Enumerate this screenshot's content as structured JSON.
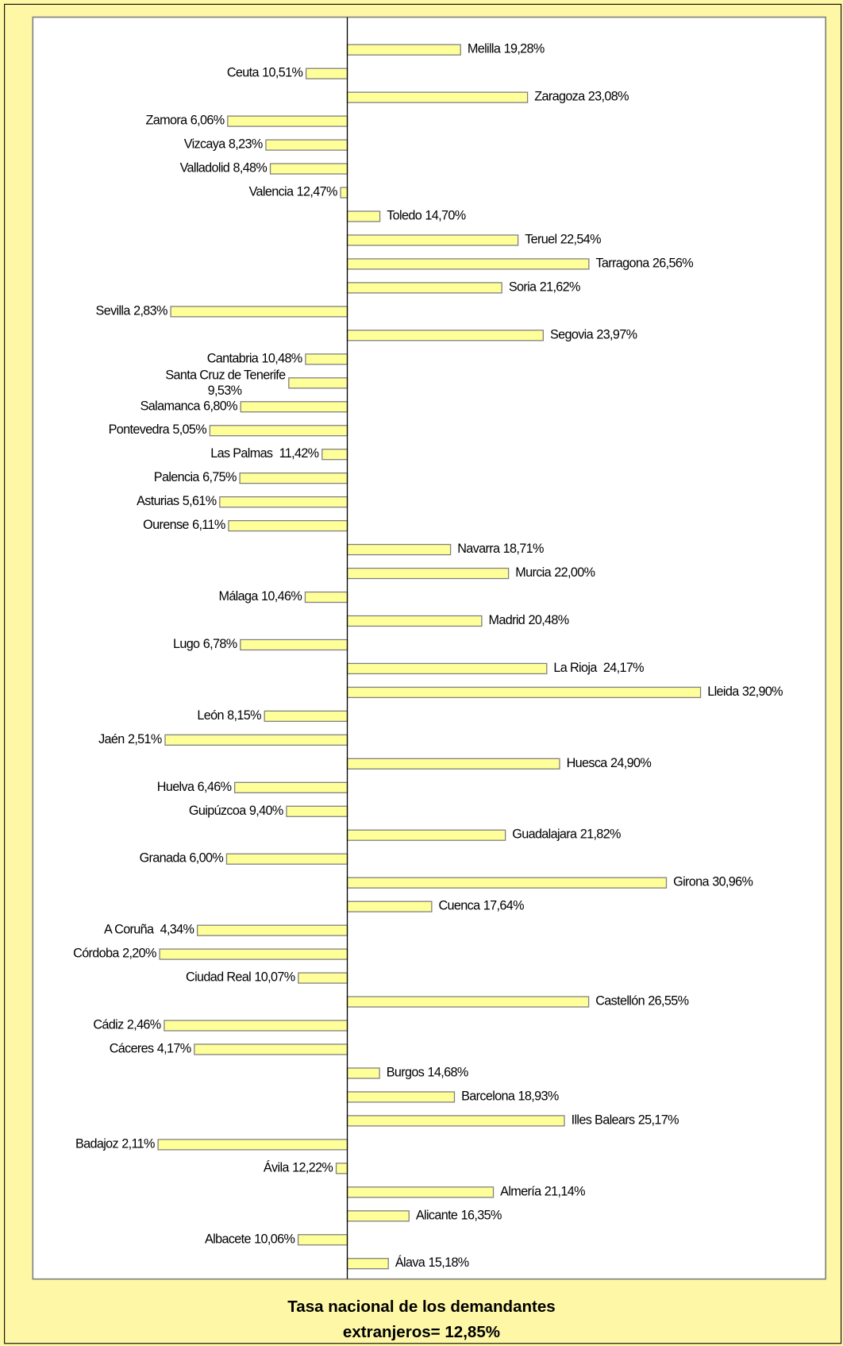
{
  "chart_data": {
    "type": "bar",
    "orientation": "horizontal",
    "categories": [
      "Melilla",
      "Ceuta",
      "Zaragoza",
      "Zamora",
      "Vizcaya",
      "Valladolid",
      "Valencia",
      "Toledo",
      "Teruel",
      "Tarragona",
      "Soria",
      "Sevilla",
      "Segovia",
      "Cantabria",
      "Santa Cruz de Tenerife",
      "Salamanca",
      "Pontevedra",
      "Las Palmas ",
      "Palencia",
      "Asturias",
      "Ourense",
      "Navarra",
      "Murcia",
      "Málaga",
      "Madrid",
      "Lugo",
      "La Rioja ",
      "Lleida",
      "León",
      "Jaén",
      "Huesca",
      "Huelva",
      "Guipúzcoa",
      "Guadalajara",
      "Granada",
      "Girona",
      "Cuenca",
      "A Coruña ",
      "Córdoba",
      "Ciudad Real",
      "Castellón",
      "Cádiz",
      "Cáceres",
      "Burgos",
      "Barcelona",
      "Illes Balears",
      "Badajoz",
      "Ávila",
      "Almería",
      "Alicante",
      "Albacete",
      "Álava"
    ],
    "values": [
      19.28,
      10.51,
      23.08,
      6.06,
      8.23,
      8.48,
      12.47,
      14.7,
      22.54,
      26.56,
      21.62,
      2.83,
      23.97,
      10.48,
      9.53,
      6.8,
      5.05,
      11.42,
      6.75,
      5.61,
      6.11,
      18.71,
      22.0,
      10.46,
      20.48,
      6.78,
      24.17,
      32.9,
      8.15,
      2.51,
      24.9,
      6.46,
      9.4,
      21.82,
      6.0,
      30.96,
      17.64,
      4.34,
      2.2,
      10.07,
      26.55,
      2.46,
      4.17,
      14.68,
      18.93,
      25.17,
      2.11,
      12.22,
      21.14,
      16.35,
      10.06,
      15.18
    ],
    "value_labels": [
      "19,28%",
      "10,51%",
      "23,08%",
      "6,06%",
      "8,23%",
      "8,48%",
      "12,47%",
      "14,70%",
      "22,54%",
      "26,56%",
      "21,62%",
      "2,83%",
      "23,97%",
      "10,48%",
      "9,53%",
      "6,80%",
      "5,05%",
      "11,42%",
      "6,75%",
      "5,61%",
      "6,11%",
      "18,71%",
      "22,00%",
      "10,46%",
      "20,48%",
      "6,78%",
      "24,17%",
      "32,90%",
      "8,15%",
      "2,51%",
      "24,90%",
      "6,46%",
      "9,40%",
      "21,82%",
      "6,00%",
      "30,96%",
      "17,64%",
      "4,34%",
      "2,20%",
      "10,07%",
      "26,55%",
      "2,46%",
      "4,17%",
      "14,68%",
      "18,93%",
      "25,17%",
      "2,11%",
      "12,22%",
      "21,14%",
      "16,35%",
      "10,06%",
      "15,18%"
    ],
    "baseline": 12.85,
    "baseline_label": "Tasa nacional de los demandantes extranjeros= 12,85%",
    "color": "#ffff99",
    "xlim": [
      -5,
      40
    ]
  }
}
